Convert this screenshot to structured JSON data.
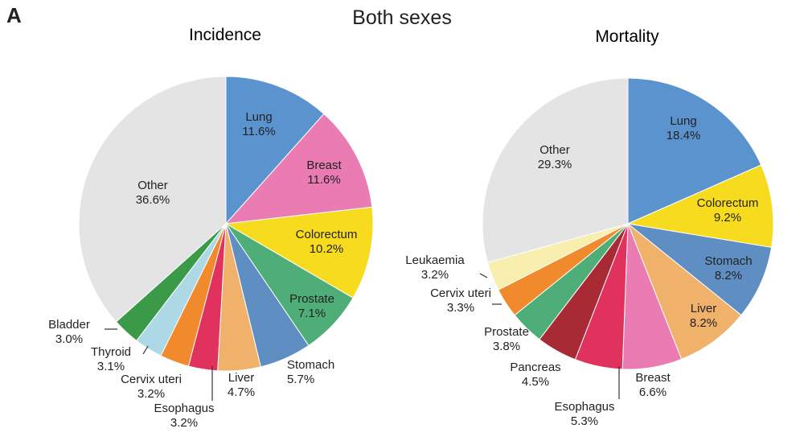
{
  "figure": {
    "panel_letter": "A",
    "title": "Both sexes"
  },
  "colors": {
    "Lung": "#5b93cf",
    "Breast": "#ea7cb3",
    "Colorectum": "#f6db1e",
    "Prostate": "#4fae78",
    "Stomach": "#5f8fc2",
    "Liver": "#f0b16a",
    "Esophagus": "#e0325c",
    "Cervix uteri": "#f1892d",
    "Thyroid": "#add8e6",
    "Bladder": "#3a9a48",
    "Pancreas": "#a82a34",
    "Leukaemia": "#f8efae",
    "Other": "#e4e4e4"
  },
  "chart_data": [
    {
      "type": "pie",
      "title": "Incidence",
      "slices": [
        {
          "label": "Lung",
          "value": 11.6,
          "value_text": "11.6%"
        },
        {
          "label": "Breast",
          "value": 11.6,
          "value_text": "11.6%"
        },
        {
          "label": "Colorectum",
          "value": 10.2,
          "value_text": "10.2%"
        },
        {
          "label": "Prostate",
          "value": 7.1,
          "value_text": "7.1%"
        },
        {
          "label": "Stomach",
          "value": 5.7,
          "value_text": "5.7%"
        },
        {
          "label": "Liver",
          "value": 4.7,
          "value_text": "4.7%"
        },
        {
          "label": "Esophagus",
          "value": 3.2,
          "value_text": "3.2%"
        },
        {
          "label": "Cervix uteri",
          "value": 3.2,
          "value_text": "3.2%"
        },
        {
          "label": "Thyroid",
          "value": 3.1,
          "value_text": "3.1%"
        },
        {
          "label": "Bladder",
          "value": 3.0,
          "value_text": "3.0%"
        },
        {
          "label": "Other",
          "value": 36.6,
          "value_text": "36.6%"
        }
      ]
    },
    {
      "type": "pie",
      "title": "Mortality",
      "slices": [
        {
          "label": "Lung",
          "value": 18.4,
          "value_text": "18.4%"
        },
        {
          "label": "Colorectum",
          "value": 9.2,
          "value_text": "9.2%"
        },
        {
          "label": "Stomach",
          "value": 8.2,
          "value_text": "8.2%"
        },
        {
          "label": "Liver",
          "value": 8.2,
          "value_text": "8.2%"
        },
        {
          "label": "Breast",
          "value": 6.6,
          "value_text": "6.6%"
        },
        {
          "label": "Esophagus",
          "value": 5.3,
          "value_text": "5.3%"
        },
        {
          "label": "Pancreas",
          "value": 4.5,
          "value_text": "4.5%"
        },
        {
          "label": "Prostate",
          "value": 3.8,
          "value_text": "3.8%"
        },
        {
          "label": "Cervix uteri",
          "value": 3.3,
          "value_text": "3.3%"
        },
        {
          "label": "Leukaemia",
          "value": 3.2,
          "value_text": "3.2%"
        },
        {
          "label": "Other",
          "value": 29.3,
          "value_text": "29.3%"
        }
      ]
    }
  ]
}
